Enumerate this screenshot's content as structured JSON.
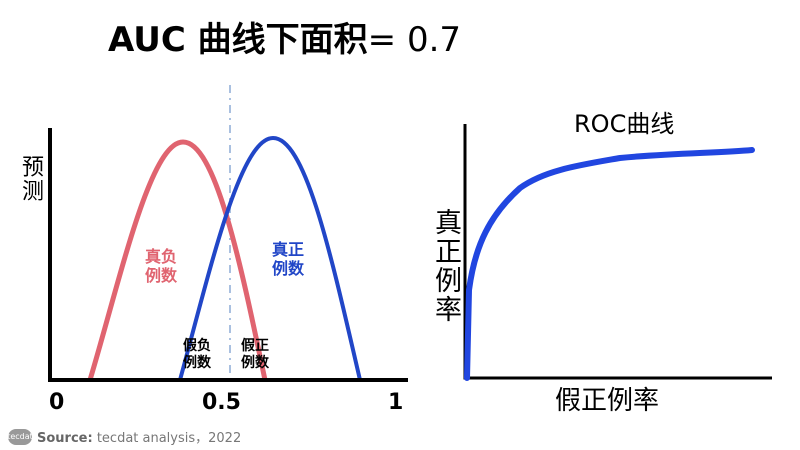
{
  "title": {
    "main": "AUC  曲线下面积",
    "value": "= 0.7"
  },
  "left_chart": {
    "ylabel": "预测",
    "x_ticks": [
      "0",
      "0.5",
      "1"
    ],
    "true_negative_label": "真负例数",
    "true_positive_label": "真正例数",
    "false_negative_label": "假负例数",
    "false_positive_label": "假正例数",
    "threshold": 0.5,
    "colors": {
      "negative": "#e06470",
      "positive": "#2146c7",
      "threshold": "#a9c0e0"
    }
  },
  "right_chart": {
    "title": "ROC曲线",
    "ylabel": "真正例率",
    "xlabel": "假正例率",
    "color": "#2146e0"
  },
  "footer": {
    "logo": "tecdat",
    "source_label": "Source:",
    "source_text": " tecdat analysis，2022"
  }
}
